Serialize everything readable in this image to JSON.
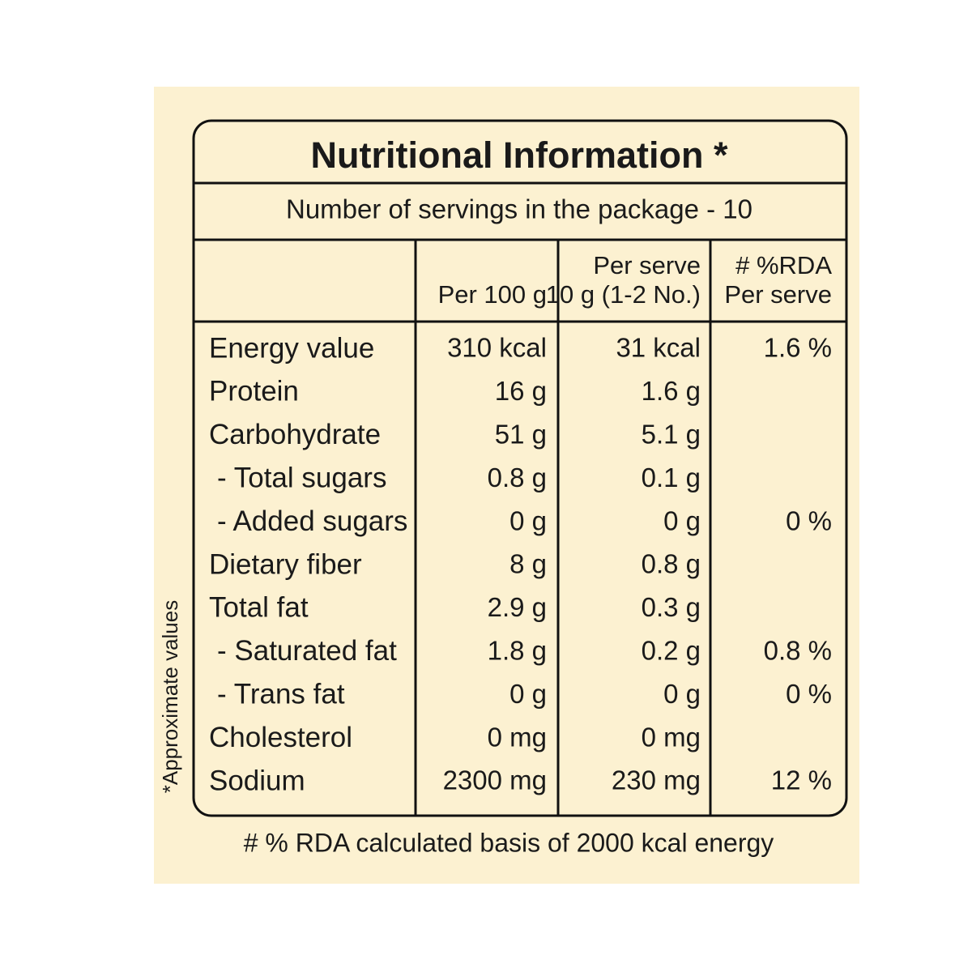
{
  "title": "Nutritional Information *",
  "servings": "Number of servings in the package - 10",
  "header": {
    "columns": [
      {
        "lines": [
          "Per 100 g"
        ]
      },
      {
        "lines": [
          "Per serve",
          "10 g (1-2 No.)"
        ]
      },
      {
        "lines": [
          "# %RDA",
          "Per serve"
        ]
      }
    ]
  },
  "rows": [
    [
      "Energy value",
      "310 kcal",
      "31 kcal",
      "1.6 %"
    ],
    [
      "Protein",
      "16 g",
      "1.6 g"
    ],
    [
      "Carbohydrate",
      "51 g",
      "5.1 g"
    ],
    [
      "- Total sugars",
      "0.8 g",
      "0.1 g"
    ],
    [
      "- Added sugars",
      "0 g",
      "0 g",
      "0 %"
    ],
    [
      "Dietary fiber",
      "8 g",
      "0.8 g"
    ],
    [
      "Total fat",
      "2.9 g",
      "0.3 g"
    ],
    [
      "- Saturated fat",
      "1.8 g",
      "0.2 g",
      "0.8 %"
    ],
    [
      "- Trans fat",
      "0 g",
      "0 g",
      "0 %"
    ],
    [
      "Cholesterol",
      "0 mg",
      "0 mg"
    ],
    [
      "Sodium",
      "2300 mg",
      "230 mg",
      "12 %"
    ]
  ],
  "side_note": "*Approximate values",
  "footnote": "# % RDA calculated basis of 2000 kcal energy"
}
